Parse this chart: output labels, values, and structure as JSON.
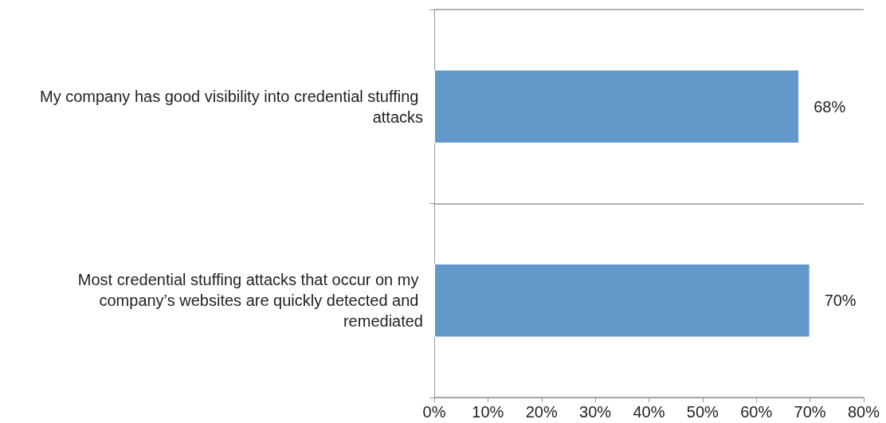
{
  "chart_data": {
    "type": "bar",
    "orientation": "horizontal",
    "categories": [
      "My company has good visibility into credential stuffing attacks",
      "Most credential stuffing attacks that occur on my company’s websites are quickly detected and remediated"
    ],
    "values": [
      68,
      70
    ],
    "color": "#6398cb",
    "value_labels": [
      "68%",
      "70%"
    ],
    "xlim": [
      0,
      80
    ],
    "xticks": [
      {
        "value": 0,
        "label": "0%"
      },
      {
        "value": 10,
        "label": "10%"
      },
      {
        "value": 20,
        "label": "20%"
      },
      {
        "value": 30,
        "label": "30%"
      },
      {
        "value": 40,
        "label": "40%"
      },
      {
        "value": 50,
        "label": "50%"
      },
      {
        "value": 60,
        "label": "60%"
      },
      {
        "value": 70,
        "label": "70%"
      },
      {
        "value": 80,
        "label": "80%"
      }
    ],
    "grid": "y"
  }
}
